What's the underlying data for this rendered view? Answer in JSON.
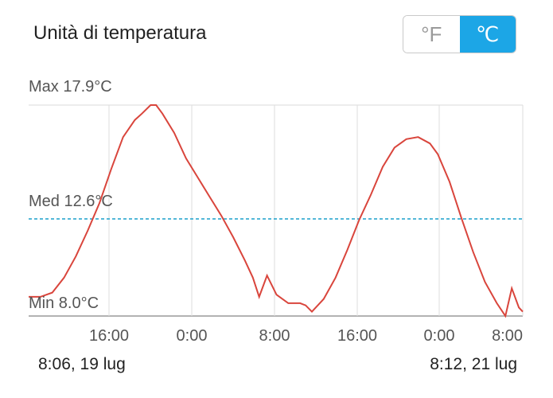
{
  "header": {
    "title": "Unità di temperatura"
  },
  "unit_toggle": {
    "options": [
      "°F",
      "℃"
    ],
    "selected": "℃"
  },
  "chart_data": {
    "type": "line",
    "max_label": "Max 17.9°C",
    "avg_label": "Med 12.6°C",
    "min_label": "Min 8.0°C",
    "max": 17.9,
    "avg": 12.6,
    "min": 8.0,
    "x_ticks": [
      "16:00",
      "0:00",
      "8:00",
      "16:00",
      "0:00",
      "8:00"
    ],
    "series": [
      {
        "values": [
          [
            0,
            8.9
          ],
          [
            1.5,
            8.9
          ],
          [
            3,
            9.1
          ],
          [
            4.5,
            9.8
          ],
          [
            6,
            10.8
          ],
          [
            7.5,
            12.0
          ],
          [
            9,
            13.3
          ],
          [
            10.5,
            14.9
          ],
          [
            12,
            16.4
          ],
          [
            13.5,
            17.2
          ],
          [
            14.4,
            17.5
          ],
          [
            15.5,
            17.9
          ],
          [
            16.2,
            17.9
          ],
          [
            17,
            17.5
          ],
          [
            18.5,
            16.6
          ],
          [
            20,
            15.4
          ],
          [
            21.5,
            14.5
          ],
          [
            23,
            13.6
          ],
          [
            24.5,
            12.7
          ],
          [
            26,
            11.7
          ],
          [
            27.5,
            10.6
          ],
          [
            28.5,
            9.8
          ],
          [
            29.3,
            8.9
          ],
          [
            30.3,
            9.9
          ],
          [
            31.5,
            9.0
          ],
          [
            33,
            8.6
          ],
          [
            34.5,
            8.6
          ],
          [
            35.2,
            8.5
          ],
          [
            36,
            8.2
          ],
          [
            37.5,
            8.8
          ],
          [
            39,
            9.8
          ],
          [
            40.5,
            11.1
          ],
          [
            42,
            12.5
          ],
          [
            43.5,
            13.7
          ],
          [
            45,
            15.0
          ],
          [
            46.5,
            15.9
          ],
          [
            48,
            16.3
          ],
          [
            49.5,
            16.4
          ],
          [
            51,
            16.1
          ],
          [
            52,
            15.6
          ],
          [
            53.5,
            14.3
          ],
          [
            55,
            12.6
          ],
          [
            56.5,
            11.0
          ],
          [
            58,
            9.6
          ],
          [
            59.5,
            8.6
          ],
          [
            60.6,
            8.0
          ],
          [
            61.4,
            9.3
          ],
          [
            62.3,
            8.4
          ],
          [
            62.8,
            8.2
          ]
        ]
      }
    ],
    "start_label": "8:06,  19 lug",
    "end_label": "8:12,  21 lug"
  }
}
